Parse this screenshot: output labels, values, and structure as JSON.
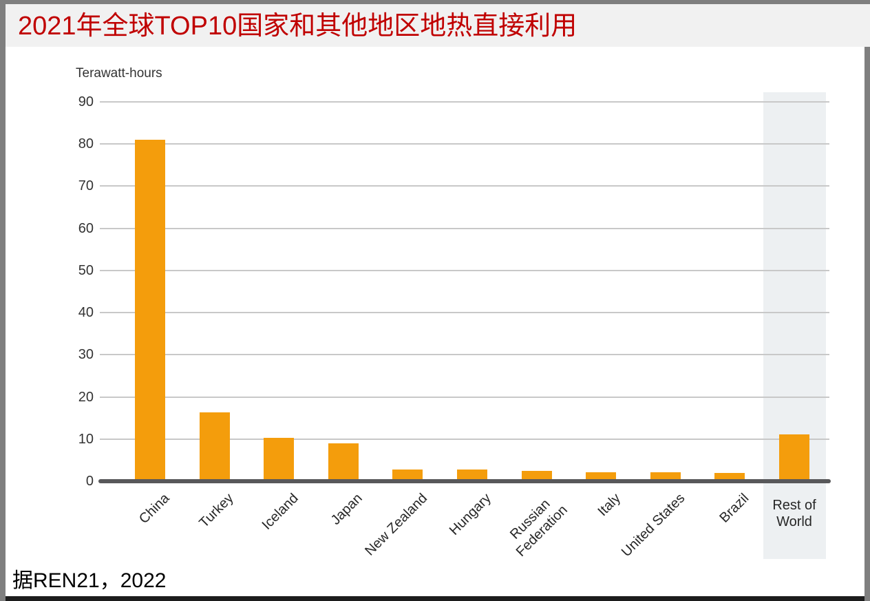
{
  "title": {
    "text": "2021年全球TOP10国家和其他地区地热直接利用"
  },
  "source": {
    "text": "据REN21，2022"
  },
  "colors": {
    "title_red": "#c00000",
    "title_band_bg": "#f1f1f1",
    "border_gray": "#7f7f7f",
    "bottom_border": "#1c1c1c",
    "bar_orange": "#f49d0c",
    "highlight_band": "#edf0f2",
    "axis_dark": "#58585a",
    "gridline_gray": "#c8c8c8"
  },
  "chart_data": {
    "type": "bar",
    "title": "2021年全球TOP10国家和其他地区地热直接利用",
    "unit_label": "Terawatt-hours",
    "categories": [
      "China",
      "Turkey",
      "Iceland",
      "Japan",
      "New Zealand",
      "Hungary",
      "Russian Federation",
      "Italy",
      "United States",
      "Brazil",
      "Rest of World"
    ],
    "values": [
      81,
      16.3,
      10.3,
      9.0,
      2.8,
      2.8,
      2.4,
      2.2,
      2.1,
      2.0,
      11.1
    ],
    "xlabel": "",
    "ylabel": "Terawatt-hours",
    "ylim": [
      0,
      92
    ],
    "yticks": [
      0,
      10,
      20,
      30,
      40,
      50,
      60,
      70,
      80,
      90
    ],
    "grid": true,
    "legend_position": "none",
    "bar_color": "#f49d0c",
    "label_overrides": {
      "Russian Federation": "Russian\nFederation",
      "Rest of World": "Rest of\nWorld"
    },
    "highlight": {
      "category": "Rest of World",
      "band_color": "#edf0f2",
      "rotated": false
    }
  }
}
